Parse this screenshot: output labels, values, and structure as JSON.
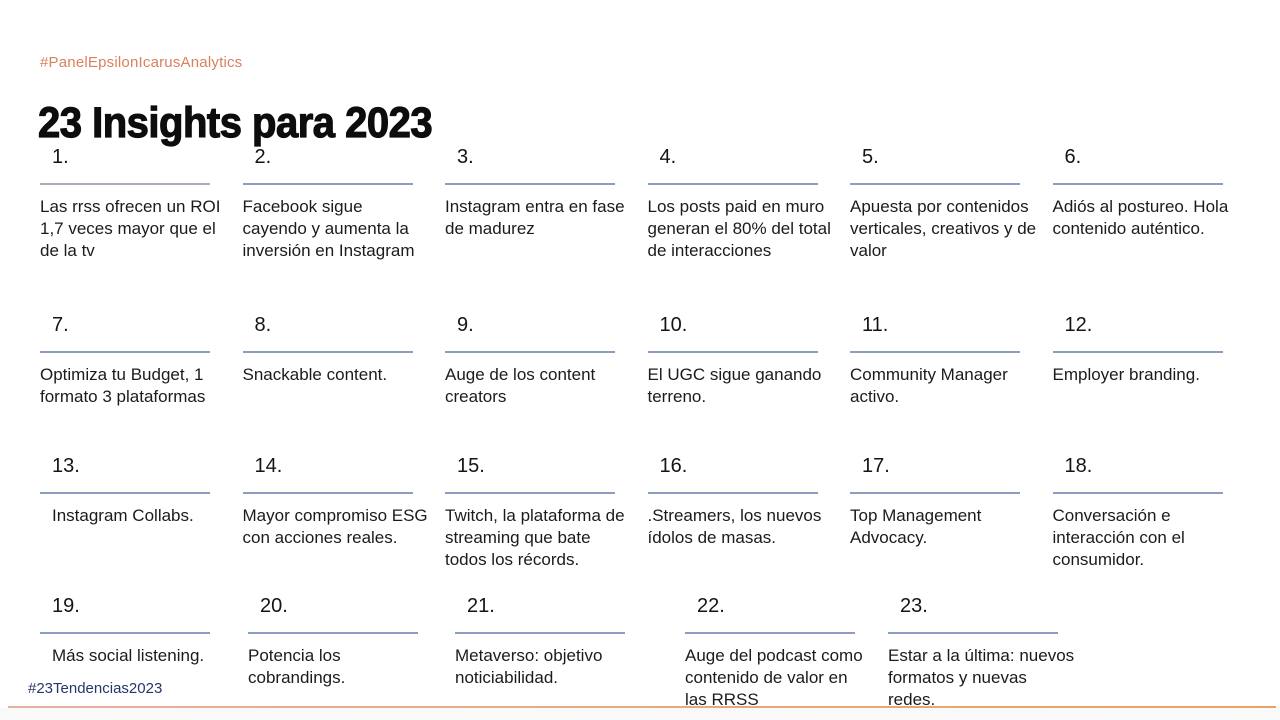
{
  "page": {
    "top_hashtag": "#PanelEpsilonIcarusAnalytics",
    "title": "23 Insights para 2023",
    "bottom_hashtag": "#23Tendencias2023"
  },
  "colors": {
    "accent_orange": "#D9815D",
    "underline_blue": "#8D9CC1",
    "underline_grey": "#A7ADB6",
    "navy": "#24376B",
    "footer_line_orange": "#E8A35F",
    "text": "#1B1B1B"
  },
  "items": [
    {
      "num": "1.",
      "text": "Las rrss ofrecen un ROI 1,7 veces mayor que el de la tv"
    },
    {
      "num": "2.",
      "text": "Facebook sigue cayendo y aumenta la inversión en Instagram"
    },
    {
      "num": "3.",
      "text": "Instagram entra en fase de madurez"
    },
    {
      "num": "4.",
      "text": "Los posts paid en muro generan el 80% del total de interacciones"
    },
    {
      "num": "5.",
      "text": "Apuesta por contenidos verticales, creativos y de valor"
    },
    {
      "num": "6.",
      "text": "Adiós al postureo. Hola contenido auténtico."
    },
    {
      "num": "7.",
      "text": "Optimiza tu Budget, 1 formato 3 plataformas"
    },
    {
      "num": "8.",
      "text": "Snackable content."
    },
    {
      "num": "9.",
      "text": "Auge de los content creators"
    },
    {
      "num": "10.",
      "text": "El UGC sigue ganando terreno."
    },
    {
      "num": "11.",
      "text": "Community Manager activo."
    },
    {
      "num": "12.",
      "text": "Employer branding."
    },
    {
      "num": "13.",
      "text": "Instagram Collabs."
    },
    {
      "num": "14.",
      "text": "Mayor compromiso ESG con acciones reales."
    },
    {
      "num": "15.",
      "text": "Twitch, la plataforma de streaming que bate todos los récords."
    },
    {
      "num": "16.",
      "text": ".Streamers, los nuevos ídolos de masas."
    },
    {
      "num": "17.",
      "text": "Top Management Advocacy."
    },
    {
      "num": "18.",
      "text": "Conversación e interacción con el consumidor."
    },
    {
      "num": "19.",
      "text": "Más social listening."
    },
    {
      "num": "20.",
      "text": "Potencia los cobrandings."
    },
    {
      "num": "21.",
      "text": "Metaverso: objetivo noticiabilidad."
    },
    {
      "num": "22.",
      "text": "Auge del podcast como contenido de valor en las RRSS"
    },
    {
      "num": "23.",
      "text": "Estar a la última: nuevos formatos y nuevas redes."
    }
  ]
}
